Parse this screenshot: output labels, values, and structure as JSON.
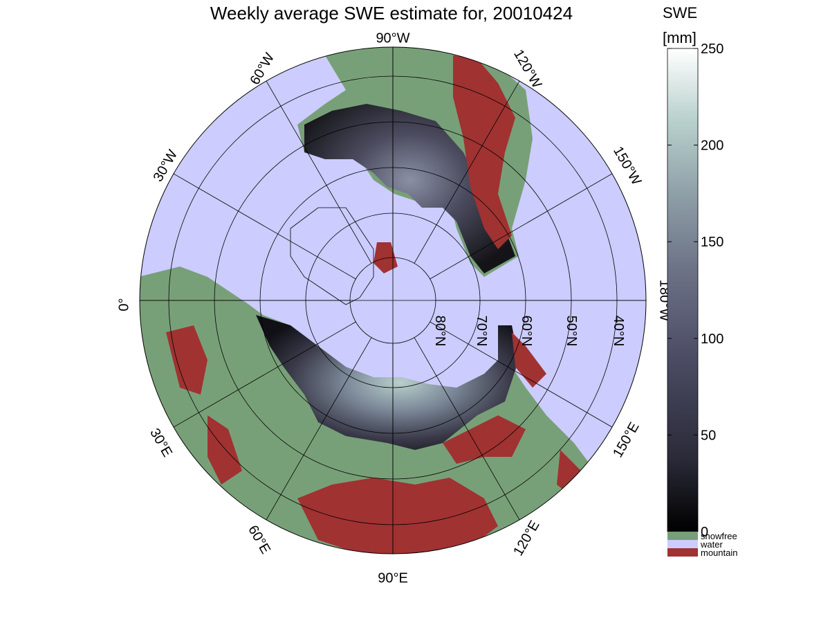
{
  "title": "Weekly average SWE estimate for, 20010424",
  "map": {
    "projection": "north-polar-stereographic",
    "colors": {
      "water": "#ccccff",
      "snowfree": "#78a078",
      "mountain": "#a03232",
      "grid": "#000000"
    },
    "longitude_labels": [
      {
        "text": "90°W"
      },
      {
        "text": "60°W"
      },
      {
        "text": "30°W"
      },
      {
        "text": "0°"
      },
      {
        "text": "30°E"
      },
      {
        "text": "60°E"
      },
      {
        "text": "90°E"
      },
      {
        "text": "120°E"
      },
      {
        "text": "150°E"
      },
      {
        "text": "180°W"
      },
      {
        "text": "150°W"
      },
      {
        "text": "120°W"
      }
    ],
    "latitude_labels": [
      {
        "text": "80°N",
        "lat": 80
      },
      {
        "text": "70°N",
        "lat": 70
      },
      {
        "text": "60°N",
        "lat": 60
      },
      {
        "text": "50°N",
        "lat": 50
      },
      {
        "text": "40°N",
        "lat": 40
      }
    ]
  },
  "colorbar": {
    "label_line1": "SWE",
    "label_line2": "[mm]",
    "min": 0,
    "max": 250,
    "ticks": [
      "0",
      "50",
      "100",
      "150",
      "200",
      "250"
    ],
    "tick_values": [
      0,
      50,
      100,
      150,
      200,
      250
    ],
    "gradient": [
      "#000000",
      "#2a2a38",
      "#4a4a62",
      "#6e7488",
      "#8fa0a8",
      "#b8d0cc",
      "#ffffff"
    ],
    "legend": [
      {
        "label": "snowfree",
        "color": "#78a078"
      },
      {
        "label": "water",
        "color": "#ccccff"
      },
      {
        "label": "mountain",
        "color": "#a03232"
      }
    ]
  }
}
